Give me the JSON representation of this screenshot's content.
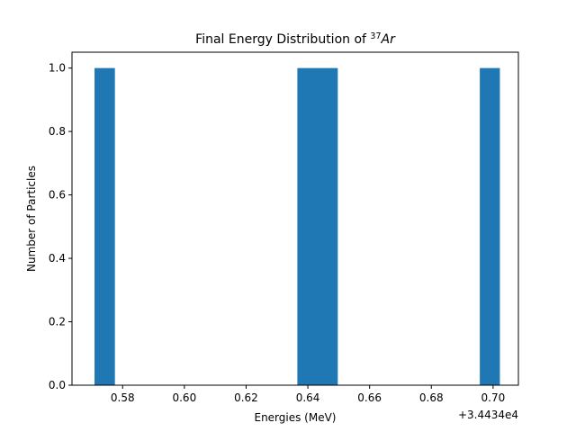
{
  "chart_data": {
    "type": "bar",
    "title": "Final Energy Distribution of ³⁷Ar",
    "title_parts": {
      "prefix": "Final Energy Distribution of ",
      "superscript": "37",
      "symbol": "Ar"
    },
    "xlabel": "Energies (MeV)",
    "ylabel": "Number of Particles",
    "x_offset_label": "+3.4434e4",
    "xlim": [
      0.5636,
      0.7082
    ],
    "ylim": [
      0,
      1.05
    ],
    "x_ticks": [
      0.58,
      0.6,
      0.62,
      0.64,
      0.66,
      0.68,
      0.7
    ],
    "x_tick_labels": [
      "0.58",
      "0.60",
      "0.62",
      "0.64",
      "0.66",
      "0.68",
      "0.70"
    ],
    "y_ticks": [
      0.0,
      0.2,
      0.4,
      0.6,
      0.8,
      1.0
    ],
    "y_tick_labels": [
      "0.0",
      "0.2",
      "0.4",
      "0.6",
      "0.8",
      "1.0"
    ],
    "bar_color": "#1f77b4",
    "bars": [
      {
        "x0": 0.5709,
        "x1": 0.5775,
        "value": 1
      },
      {
        "x0": 0.6366,
        "x1": 0.6497,
        "value": 1
      },
      {
        "x0": 0.6957,
        "x1": 0.7022,
        "value": 1
      }
    ],
    "grid": false,
    "legend": "none"
  }
}
